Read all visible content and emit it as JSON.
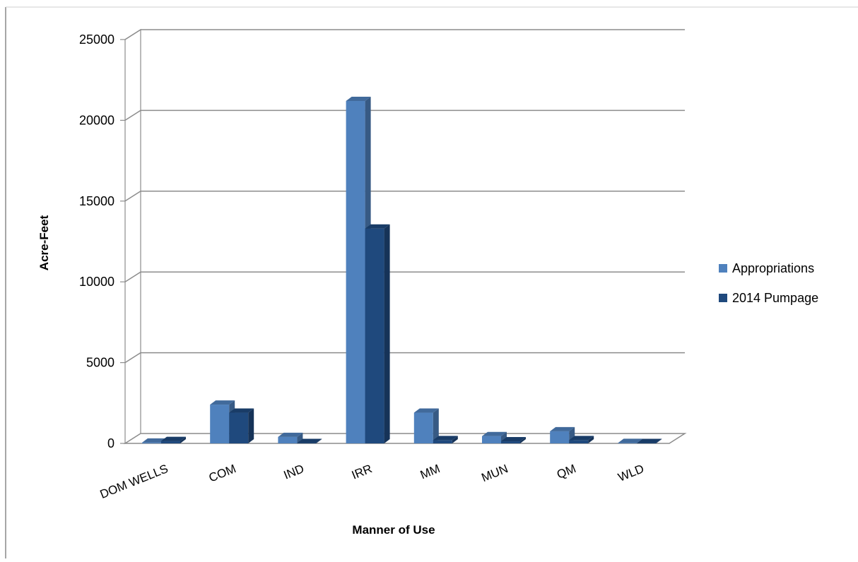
{
  "chart_data": {
    "type": "bar",
    "style": "3d-clustered-column",
    "title": "",
    "xlabel": "Manner of Use",
    "ylabel": "Acre-Feet",
    "ylim": [
      0,
      25000
    ],
    "yticks": [
      "0",
      "5000",
      "10000",
      "15000",
      "20000",
      "25000"
    ],
    "categories": [
      "DOM WELLS",
      "COM",
      "IND",
      "IRR",
      "MM",
      "MUN",
      "QM",
      "WLD"
    ],
    "series": [
      {
        "name": "Appropriations",
        "color": "#4f81bd",
        "values": [
          50,
          2400,
          400,
          21200,
          1900,
          450,
          750,
          30
        ]
      },
      {
        "name": "2014 Pumpage",
        "color": "#1f497d",
        "values": [
          150,
          1900,
          20,
          13300,
          200,
          130,
          200,
          20
        ]
      }
    ],
    "grid": true,
    "legend_position": "right"
  }
}
